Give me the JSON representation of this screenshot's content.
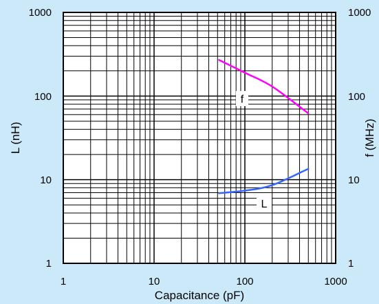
{
  "chart_data": {
    "type": "line",
    "x_scale": "log",
    "y_scale": "log",
    "xlim": [
      1,
      1000
    ],
    "ylim": [
      1,
      1000
    ],
    "y2lim": [
      1,
      1000
    ],
    "grid": true,
    "xlabel": "Capacitance (pF)",
    "ylabel": "L (nH)",
    "y2label": "f (MHz)",
    "x_ticks": [
      "1",
      "10",
      "100",
      "1000"
    ],
    "y_ticks": [
      "1",
      "10",
      "100",
      "1000"
    ],
    "y2_ticks": [
      "1",
      "10",
      "100",
      "1000"
    ],
    "series": [
      {
        "name": "f",
        "axis": "right",
        "color": "#ff00ff",
        "x": [
          52,
          100,
          200,
          500
        ],
        "y": [
          270,
          190,
          130,
          62
        ]
      },
      {
        "name": "L",
        "axis": "left",
        "color": "#3366ff",
        "x": [
          52,
          100,
          200,
          500
        ],
        "y": [
          6.9,
          7.4,
          8.6,
          13.5
        ]
      }
    ]
  },
  "colors": {
    "background": "#cce9f9",
    "plot_area": "#ffffff",
    "grid": "#000000"
  }
}
